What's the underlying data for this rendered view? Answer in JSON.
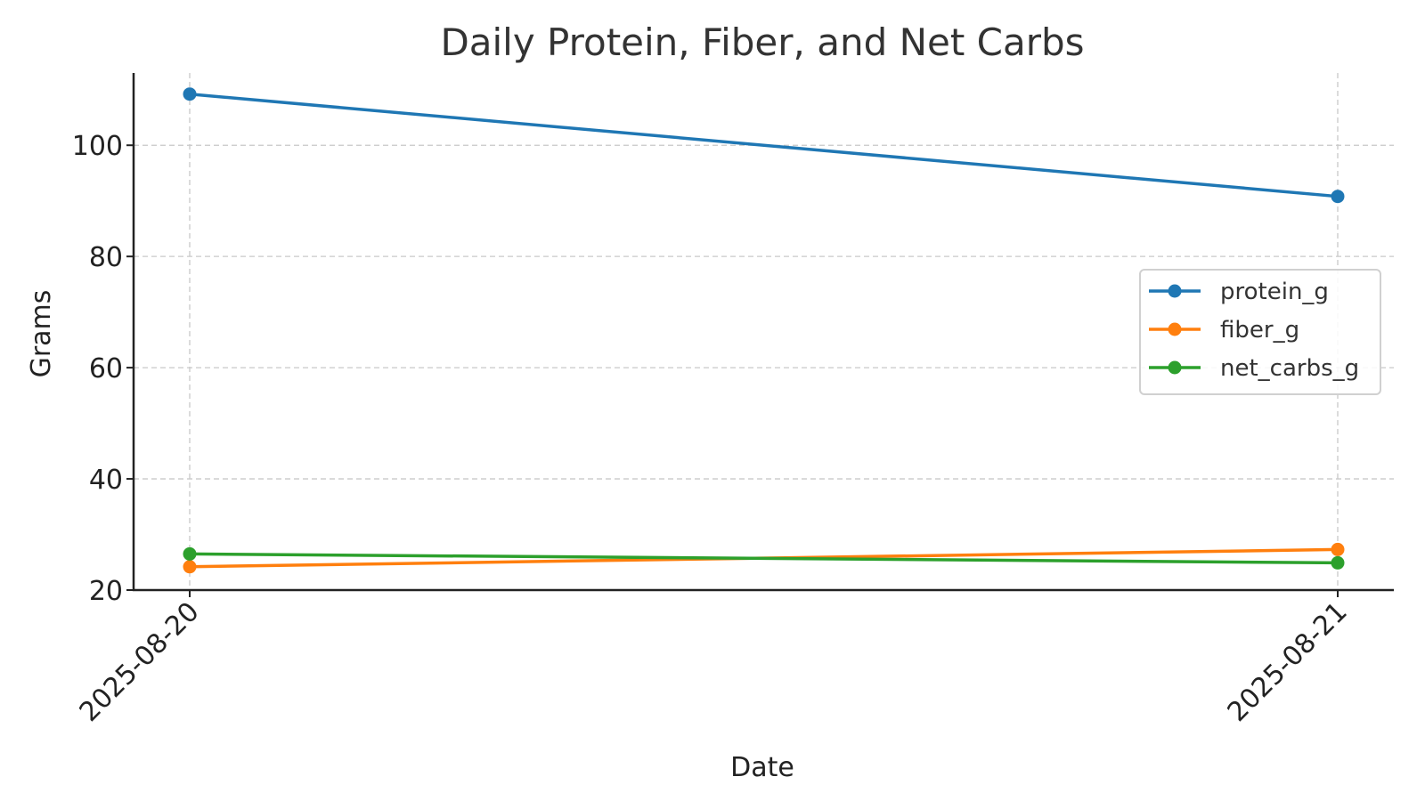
{
  "chart_data": {
    "type": "line",
    "title": "Daily Protein, Fiber, and Net Carbs",
    "xlabel": "Date",
    "ylabel": "Grams",
    "x": [
      "2025-08-20",
      "2025-08-21"
    ],
    "ylim": [
      20,
      113
    ],
    "yticks": [
      20,
      40,
      60,
      80,
      100
    ],
    "grid": true,
    "legend_position": "center-right",
    "series": [
      {
        "name": "protein_g",
        "color": "#1f77b4",
        "values": [
          109.2,
          90.8
        ]
      },
      {
        "name": "fiber_g",
        "color": "#ff7f0e",
        "values": [
          24.2,
          27.3
        ]
      },
      {
        "name": "net_carbs_g",
        "color": "#2ca02c",
        "values": [
          26.5,
          24.9
        ]
      }
    ]
  }
}
